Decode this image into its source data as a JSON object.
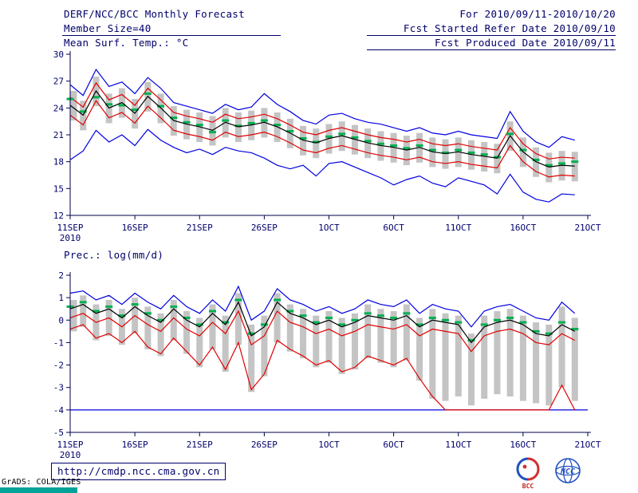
{
  "header": {
    "title": "DERF/NCC/BCC Monthly Forecast",
    "member_size": "Member Size=40",
    "for_range": "For 2010/09/11-2010/10/20",
    "refer_date": "Fcst Started Refer Date 2010/09/10",
    "produced_date": "Fcst Produced Date 2010/09/11"
  },
  "footer": {
    "url": "http://cmdp.ncc.cma.gov.cn",
    "grads_credit": "GrADS: COLA/IGES",
    "logo_bcc": "BCC",
    "logo_ncc": "NCC"
  },
  "colors": {
    "text": "#00006a",
    "axis": "#00004a",
    "bar": "#c4c4c4",
    "envelope_blue": "#0000e0",
    "spread_red": "#e00000",
    "mean_black": "#000000",
    "obs_green": "#00b050",
    "teal_bar": "#00a398",
    "logo_red": "#d03030",
    "logo_blue": "#2050c0"
  },
  "chart_data": [
    {
      "type": "line",
      "ylabel": "Mean Surf. Temp.: °C",
      "x_tick_labels": [
        "11SEP",
        "16SEP",
        "21SEP",
        "26SEP",
        "1OCT",
        "6OCT",
        "11OCT",
        "16OCT",
        "21OCT"
      ],
      "x_tick_days": [
        0,
        5,
        10,
        15,
        20,
        25,
        30,
        35,
        40
      ],
      "x_sub_label": "2010",
      "x_days_total": 40,
      "ylim": [
        12,
        30
      ],
      "yticks": [
        12,
        15,
        18,
        21,
        24,
        27,
        30
      ],
      "grid": false,
      "bars": {
        "name": "ensemble-spread-bar",
        "color": "#c4c4c4",
        "low": [
          22.6,
          21.5,
          24.2,
          22.3,
          22.9,
          21.7,
          23.6,
          22.3,
          20.9,
          20.5,
          20.2,
          19.8,
          20.7,
          20.2,
          20.4,
          20.7,
          20.2,
          19.5,
          18.7,
          18.4,
          18.9,
          19.2,
          18.8,
          18.4,
          18.1,
          17.9,
          17.6,
          17.9,
          17.4,
          17.2,
          17.4,
          17.1,
          16.9,
          16.7,
          19.2,
          17.4,
          16.3,
          15.7,
          15.9,
          15.8
        ],
        "high": [
          25.9,
          24.8,
          27.5,
          25.6,
          26.2,
          25.0,
          26.9,
          25.6,
          24.2,
          23.8,
          23.5,
          23.1,
          24.0,
          23.5,
          23.7,
          24.0,
          23.5,
          22.8,
          22.0,
          21.7,
          22.2,
          22.5,
          22.1,
          21.7,
          21.4,
          21.2,
          20.9,
          21.2,
          20.7,
          20.5,
          20.7,
          20.4,
          20.2,
          20.0,
          22.5,
          20.7,
          19.6,
          19.0,
          19.2,
          19.1
        ]
      },
      "series": [
        {
          "name": "ensemble-max",
          "type": "line",
          "color": "#0000e0",
          "values": [
            26.6,
            25.4,
            28.3,
            26.4,
            26.9,
            25.6,
            27.4,
            26.2,
            24.6,
            24.2,
            23.8,
            23.4,
            24.4,
            23.8,
            24.1,
            25.6,
            24.4,
            23.6,
            22.6,
            22.2,
            23.2,
            23.4,
            22.8,
            22.4,
            22.2,
            21.8,
            21.4,
            21.8,
            21.2,
            21.0,
            21.4,
            21.0,
            20.8,
            20.6,
            23.6,
            21.4,
            20.2,
            19.6,
            20.8,
            20.4
          ]
        },
        {
          "name": "ensemble-min",
          "type": "line",
          "color": "#0000e0",
          "values": [
            18.2,
            19.2,
            21.5,
            20.2,
            21.0,
            19.8,
            21.6,
            20.4,
            19.6,
            19.0,
            19.4,
            18.8,
            19.6,
            19.2,
            19.0,
            18.4,
            17.6,
            17.2,
            17.6,
            16.4,
            17.8,
            18.0,
            17.4,
            16.8,
            16.2,
            15.4,
            16.0,
            16.4,
            15.6,
            15.2,
            16.2,
            15.8,
            15.4,
            14.4,
            16.6,
            14.6,
            13.8,
            13.5,
            14.4,
            14.3
          ]
        },
        {
          "name": "spread-upper",
          "type": "line",
          "color": "#e00000",
          "values": [
            25.2,
            24.1,
            26.8,
            24.9,
            25.5,
            24.3,
            26.2,
            24.9,
            23.5,
            23.1,
            22.8,
            22.4,
            23.3,
            22.8,
            23.0,
            23.3,
            22.8,
            22.1,
            21.3,
            21.0,
            21.5,
            21.8,
            21.4,
            21.0,
            20.7,
            20.5,
            20.2,
            20.5,
            20.0,
            19.8,
            20.0,
            19.7,
            19.5,
            19.3,
            21.8,
            20.0,
            18.9,
            18.3,
            18.5,
            18.4
          ]
        },
        {
          "name": "spread-lower",
          "type": "line",
          "color": "#e00000",
          "values": [
            23.2,
            22.1,
            24.8,
            22.9,
            23.5,
            22.3,
            24.2,
            22.9,
            21.5,
            21.1,
            20.8,
            20.4,
            21.3,
            20.8,
            21.0,
            21.3,
            20.8,
            20.1,
            19.3,
            19.0,
            19.5,
            19.8,
            19.4,
            19.0,
            18.7,
            18.5,
            18.2,
            18.5,
            18.0,
            17.8,
            18.0,
            17.7,
            17.5,
            17.3,
            19.8,
            18.0,
            16.9,
            16.3,
            16.5,
            16.4
          ]
        },
        {
          "name": "observation",
          "type": "dash",
          "color": "#00b050",
          "values": [
            25.0,
            23.6,
            25.2,
            24.4,
            24.3,
            23.8,
            25.6,
            24.2,
            22.9,
            22.4,
            22.1,
            21.3,
            22.6,
            22.0,
            22.3,
            22.6,
            22.1,
            21.4,
            20.6,
            20.2,
            20.8,
            21.1,
            20.7,
            20.3,
            20.0,
            19.8,
            19.5,
            19.8,
            19.3,
            19.0,
            19.3,
            19.0,
            18.8,
            18.5,
            21.1,
            19.3,
            18.2,
            17.6,
            17.8,
            18.0
          ]
        },
        {
          "name": "ensemble-mean",
          "type": "line",
          "color": "#000000",
          "values": [
            24.3,
            23.2,
            25.9,
            24.0,
            24.6,
            23.4,
            25.3,
            24.0,
            22.6,
            22.2,
            21.9,
            21.5,
            22.4,
            21.9,
            22.1,
            22.4,
            21.9,
            21.2,
            20.4,
            20.1,
            20.6,
            20.9,
            20.5,
            20.1,
            19.8,
            19.6,
            19.3,
            19.6,
            19.1,
            18.9,
            19.1,
            18.8,
            18.6,
            18.4,
            20.9,
            19.1,
            18.0,
            17.4,
            17.6,
            17.5
          ]
        }
      ]
    },
    {
      "type": "line",
      "ylabel": "Prec.: log(mm/d)",
      "x_tick_labels": [
        "11SEP",
        "16SEP",
        "21SEP",
        "26SEP",
        "1OCT",
        "6OCT",
        "11OCT",
        "16OCT",
        "21OCT"
      ],
      "x_tick_days": [
        0,
        5,
        10,
        15,
        20,
        25,
        30,
        35,
        40
      ],
      "x_sub_label": "2010",
      "x_days_total": 40,
      "ylim": [
        -5,
        2
      ],
      "yticks": [
        -5,
        -4,
        -3,
        -2,
        -1,
        0,
        1,
        2
      ],
      "grid": false,
      "bars": {
        "name": "ensemble-spread-bar",
        "color": "#c4c4c4",
        "low": [
          -0.5,
          -0.3,
          -0.9,
          -0.7,
          -1.1,
          -0.6,
          -1.3,
          -1.6,
          -0.9,
          -1.5,
          -2.1,
          -1.3,
          -2.3,
          -1.1,
          -3.2,
          -2.5,
          -1.0,
          -1.4,
          -1.7,
          -2.1,
          -1.9,
          -2.4,
          -2.2,
          -1.7,
          -1.9,
          -2.1,
          -1.8,
          -2.7,
          -3.5,
          -3.6,
          -3.4,
          -3.8,
          -3.5,
          -3.3,
          -3.4,
          -3.6,
          -3.7,
          -3.8,
          -3.0,
          -3.6
        ],
        "high": [
          0.9,
          1.1,
          0.7,
          0.9,
          0.5,
          1.0,
          0.6,
          0.3,
          0.9,
          0.4,
          0.1,
          0.7,
          0.2,
          1.2,
          -0.2,
          0.2,
          1.2,
          0.7,
          0.5,
          0.2,
          0.4,
          0.1,
          0.3,
          0.7,
          0.5,
          0.4,
          0.7,
          0.1,
          0.5,
          0.3,
          0.2,
          -0.6,
          0.2,
          0.4,
          0.5,
          0.2,
          -0.1,
          -0.2,
          0.6,
          0.1
        ]
      },
      "series": [
        {
          "name": "ensemble-max",
          "type": "line",
          "color": "#0000e0",
          "values": [
            1.2,
            1.3,
            0.9,
            1.1,
            0.7,
            1.2,
            0.8,
            0.5,
            1.1,
            0.6,
            0.3,
            0.9,
            0.4,
            1.5,
            0.0,
            0.4,
            1.4,
            0.9,
            0.7,
            0.4,
            0.6,
            0.3,
            0.5,
            0.9,
            0.7,
            0.6,
            0.9,
            0.3,
            0.7,
            0.5,
            0.4,
            -0.3,
            0.4,
            0.6,
            0.7,
            0.4,
            0.1,
            0.0,
            0.8,
            0.3
          ]
        },
        {
          "name": "zero-precip-floor",
          "type": "const",
          "value": -4,
          "color": "#0000e0"
        },
        {
          "name": "spread-upper",
          "type": "line",
          "color": "#e00000",
          "values": [
            0.1,
            0.3,
            -0.1,
            0.1,
            -0.3,
            0.2,
            -0.2,
            -0.5,
            0.1,
            -0.4,
            -0.7,
            -0.1,
            -0.6,
            0.4,
            -1.1,
            -0.7,
            0.4,
            -0.1,
            -0.3,
            -0.6,
            -0.4,
            -0.7,
            -0.5,
            -0.2,
            -0.3,
            -0.4,
            -0.2,
            -0.7,
            -0.4,
            -0.5,
            -0.6,
            -1.4,
            -0.7,
            -0.5,
            -0.4,
            -0.6,
            -1.0,
            -1.1,
            -0.6,
            -0.9
          ]
        },
        {
          "name": "spread-lower",
          "type": "line",
          "color": "#e00000",
          "values": [
            -0.4,
            -0.2,
            -0.8,
            -0.6,
            -1.0,
            -0.5,
            -1.2,
            -1.5,
            -0.8,
            -1.4,
            -2.0,
            -1.2,
            -2.2,
            -1.0,
            -3.1,
            -2.4,
            -0.9,
            -1.3,
            -1.6,
            -2.0,
            -1.8,
            -2.3,
            -2.1,
            -1.6,
            -1.8,
            -2.0,
            -1.7,
            -2.6,
            -3.4,
            -4.0,
            -4.0,
            -4.0,
            -4.0,
            -4.0,
            -4.0,
            -4.0,
            -4.0,
            -4.0,
            -2.9,
            -4.0
          ]
        },
        {
          "name": "observation",
          "type": "dash",
          "color": "#00b050",
          "values": [
            0.6,
            0.8,
            0.4,
            0.6,
            0.2,
            0.7,
            0.3,
            0.0,
            0.6,
            0.1,
            -0.2,
            0.4,
            -0.1,
            0.9,
            -0.6,
            -0.2,
            0.9,
            0.4,
            0.2,
            -0.1,
            0.1,
            -0.2,
            0.0,
            0.3,
            0.2,
            0.1,
            0.3,
            -0.2,
            0.1,
            0.0,
            -0.1,
            -0.9,
            -0.2,
            0.0,
            0.1,
            -0.1,
            -0.5,
            -0.6,
            -0.1,
            -0.4
          ]
        },
        {
          "name": "ensemble-mean",
          "type": "line",
          "color": "#000000",
          "values": [
            0.5,
            0.7,
            0.3,
            0.5,
            0.1,
            0.6,
            0.2,
            -0.1,
            0.5,
            0.0,
            -0.3,
            0.3,
            -0.2,
            0.8,
            -0.7,
            -0.3,
            0.8,
            0.3,
            0.1,
            -0.2,
            0.0,
            -0.3,
            -0.1,
            0.2,
            0.1,
            0.0,
            0.2,
            -0.3,
            0.0,
            -0.1,
            -0.2,
            -1.0,
            -0.3,
            -0.1,
            0.0,
            -0.2,
            -0.6,
            -0.7,
            -0.2,
            -0.5
          ]
        }
      ]
    }
  ]
}
